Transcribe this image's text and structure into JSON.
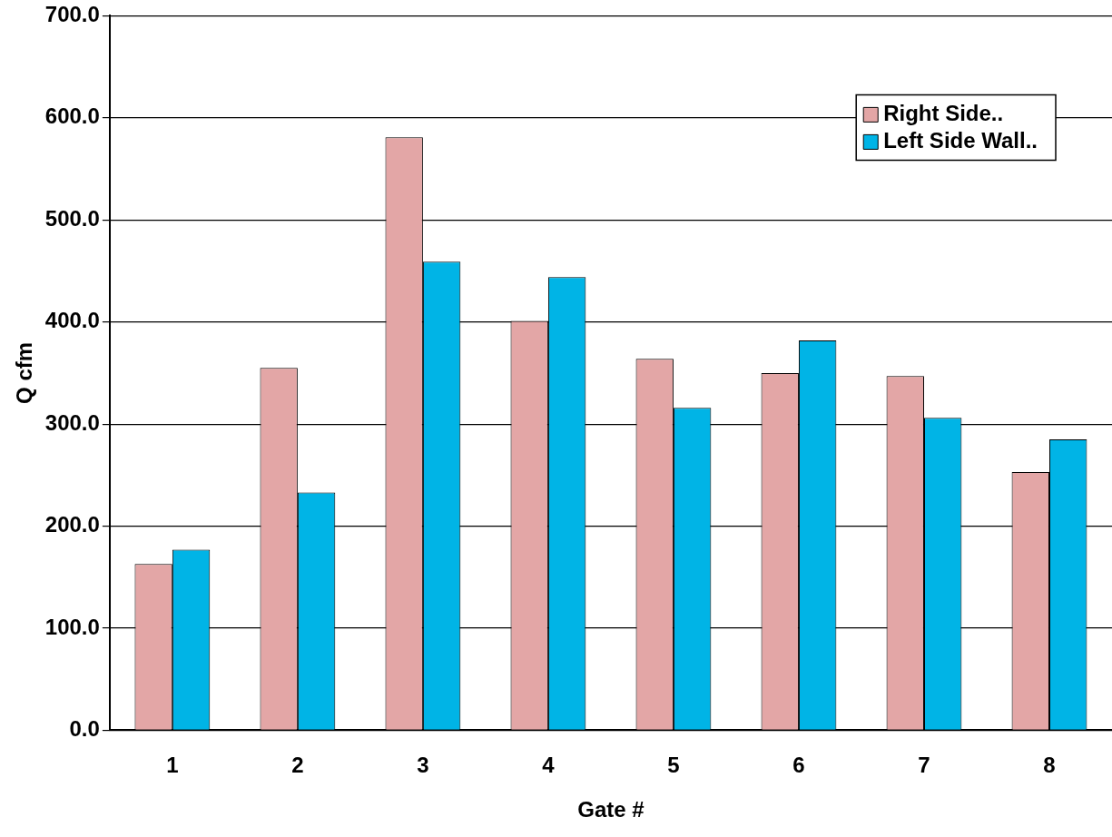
{
  "chart_data": {
    "type": "bar",
    "xlabel": "Gate #",
    "ylabel": "Q cfm",
    "categories": [
      "1",
      "2",
      "3",
      "4",
      "5",
      "6",
      "7",
      "8"
    ],
    "series": [
      {
        "name": "Right Side..",
        "color": "#e3a6a6",
        "values": [
          163,
          355,
          581,
          401,
          364,
          350,
          347,
          253
        ]
      },
      {
        "name": "Left Side Wall..",
        "color": "#00b4e6",
        "values": [
          177,
          233,
          459,
          444,
          316,
          382,
          306,
          285
        ]
      }
    ],
    "ylim": [
      0,
      700
    ],
    "yticks": [
      {
        "value": 0,
        "label": "0.0"
      },
      {
        "value": 100,
        "label": "100.0"
      },
      {
        "value": 200,
        "label": "200.0"
      },
      {
        "value": 300,
        "label": "300.0"
      },
      {
        "value": 400,
        "label": "400.0"
      },
      {
        "value": 500,
        "label": "500.0"
      },
      {
        "value": 600,
        "label": "600.0"
      },
      {
        "value": 700,
        "label": "700.0"
      }
    ],
    "grid": "y",
    "legend": "top right"
  }
}
